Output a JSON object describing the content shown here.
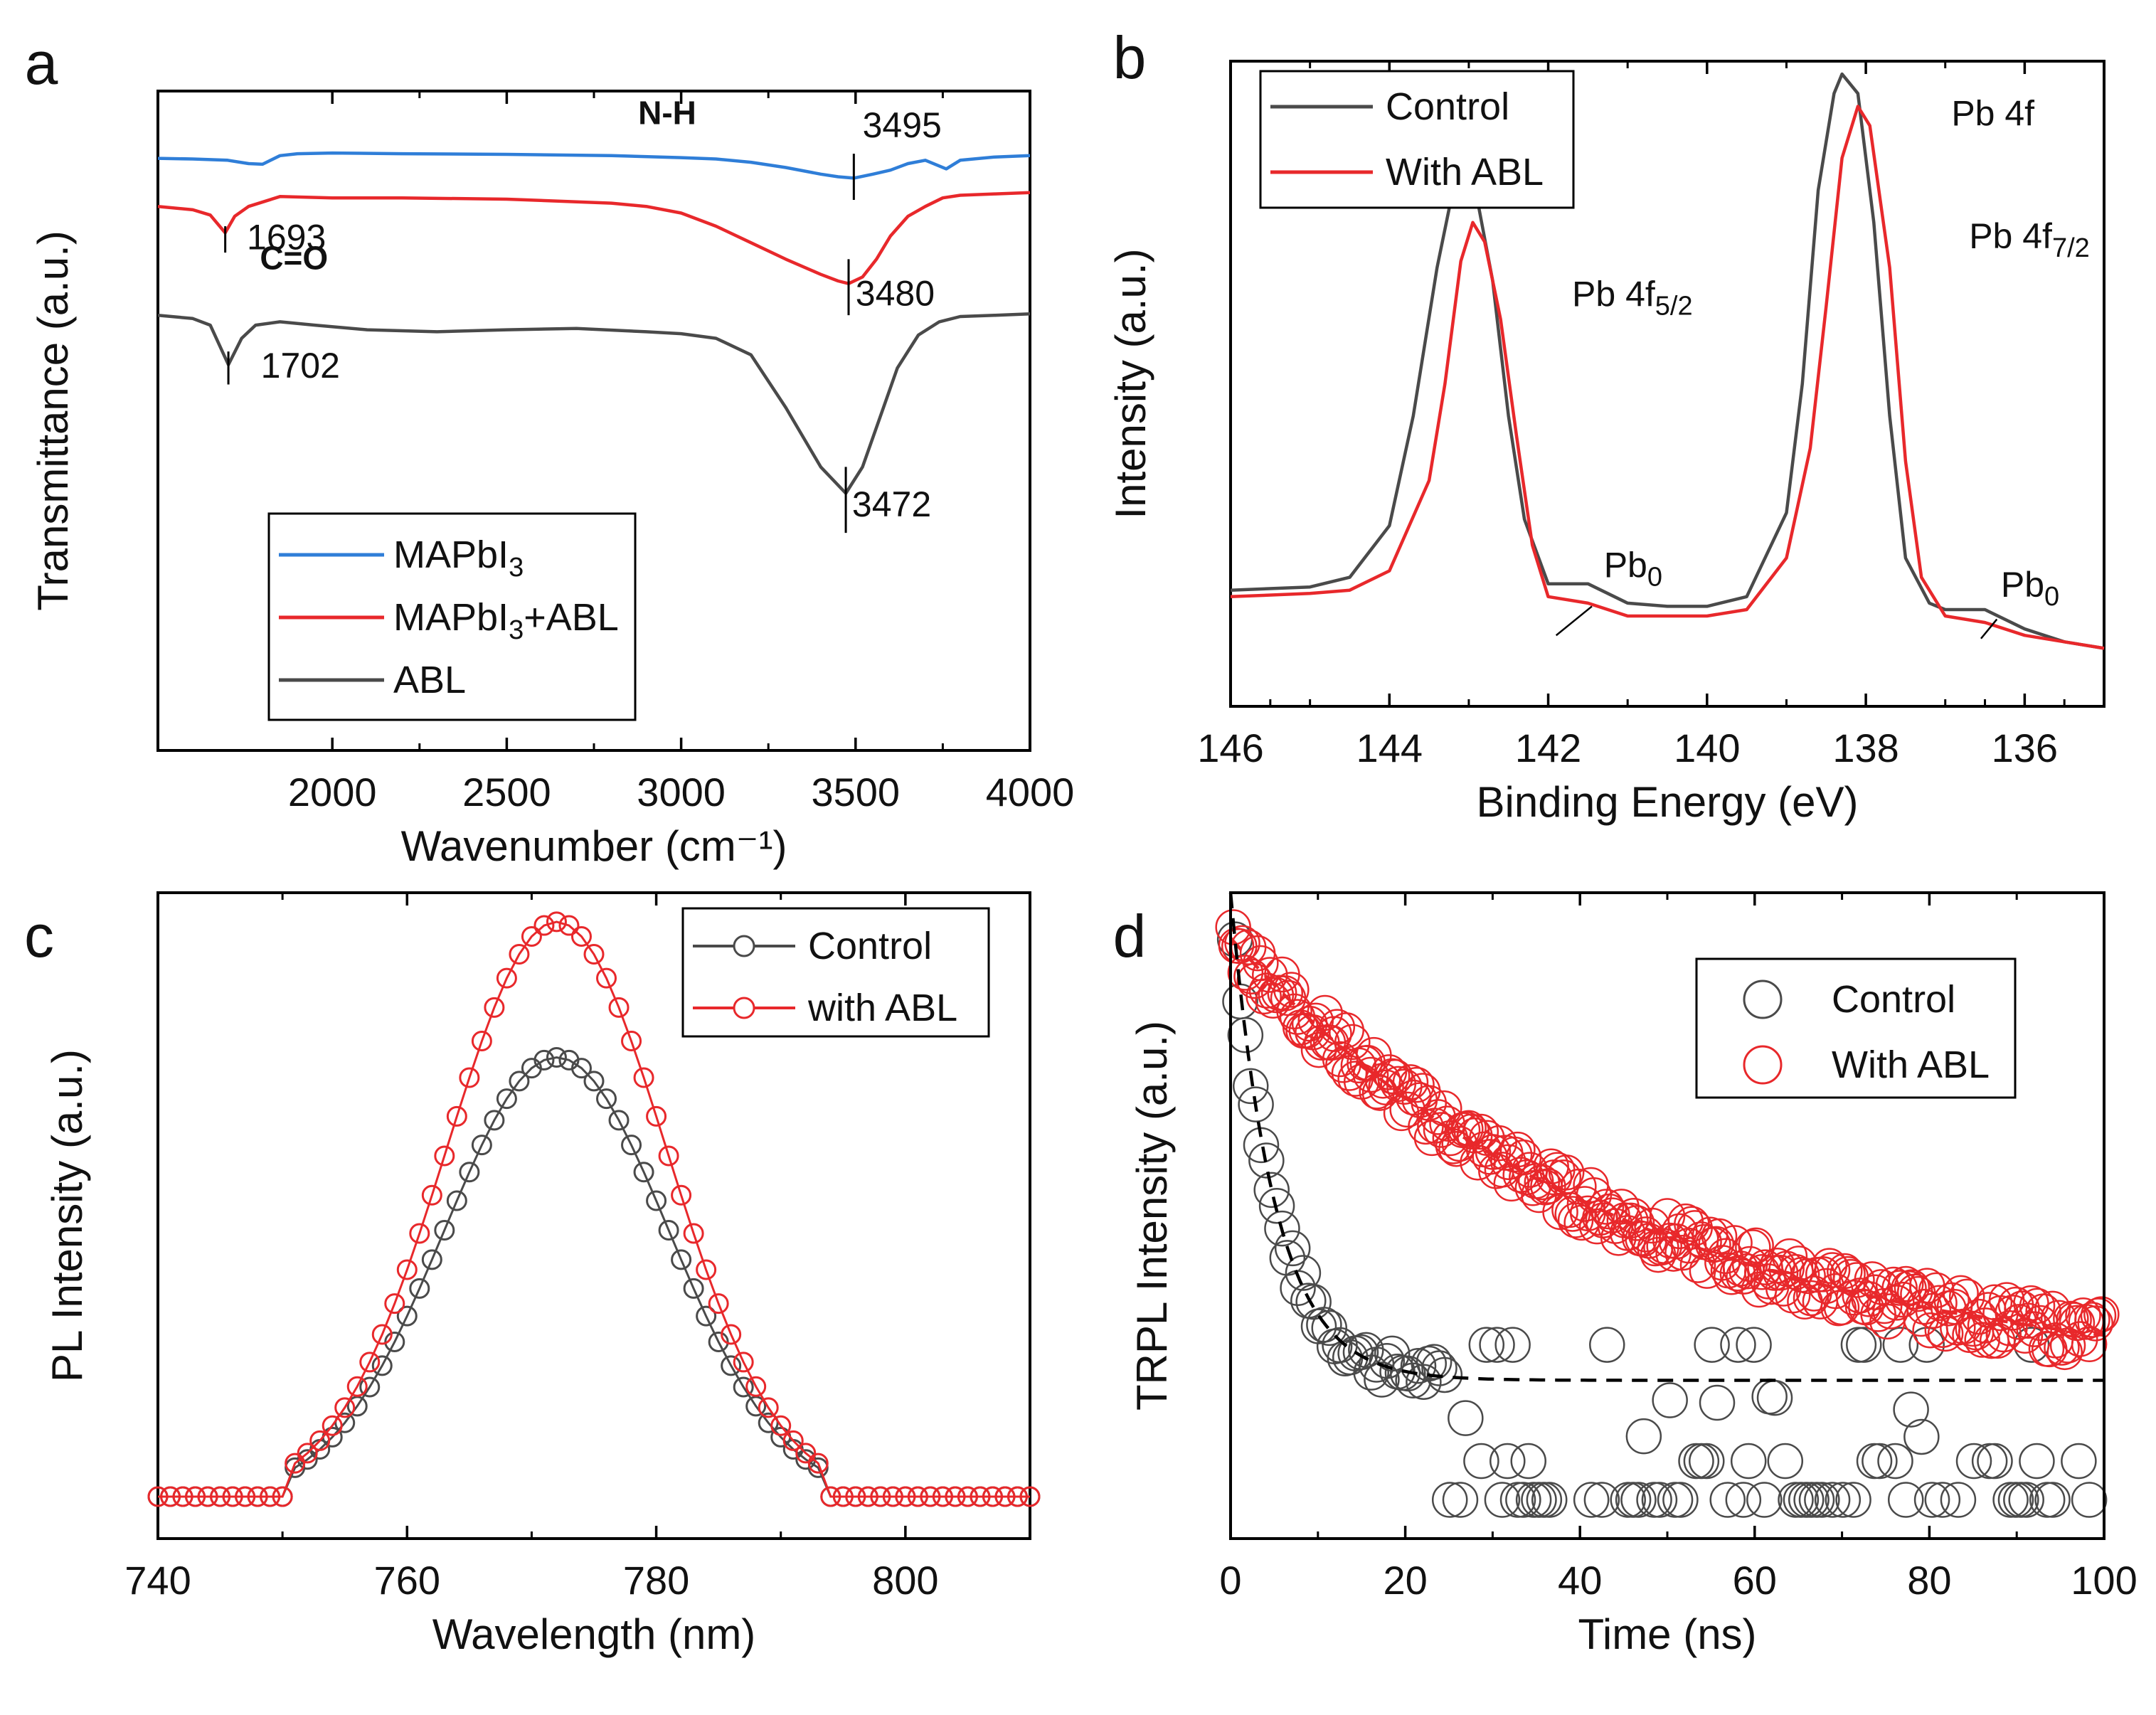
{
  "figure": {
    "panels": [
      "a",
      "b",
      "c",
      "d"
    ]
  },
  "colors": {
    "blue": "#2f7ed8",
    "red": "#e8282b",
    "gray": "#4a4a4a",
    "black": "#000000"
  },
  "chart_data": [
    {
      "id": "a",
      "type": "line",
      "title": "",
      "xlabel": "Wavenumber (cm⁻¹)",
      "ylabel": "Transmittance (a.u.)",
      "xlim": [
        1500,
        4000
      ],
      "ylim": [
        0,
        1
      ],
      "xticks": [
        2000,
        2500,
        3000,
        3500,
        4000
      ],
      "legend": {
        "placement": "bottom-left",
        "entries": [
          "MAPbI₃",
          "MAPbI₃+ABL",
          "ABL"
        ]
      },
      "legend_parts": [
        {
          "base": "MAPbI",
          "sub": "3",
          "rest": ""
        },
        {
          "base": "MAPbI",
          "sub": "3",
          "rest": "+ABL"
        },
        {
          "base": "ABL",
          "sub": "",
          "rest": ""
        }
      ],
      "series": [
        {
          "name": "MAPbI₃",
          "color": "blue",
          "x": [
            1500,
            1600,
            1700,
            1760,
            1800,
            1850,
            1900,
            2000,
            2200,
            2500,
            2800,
            3000,
            3100,
            3200,
            3300,
            3400,
            3450,
            3495,
            3550,
            3600,
            3650,
            3700,
            3760,
            3800,
            3900,
            4000
          ],
          "y": [
            0.898,
            0.897,
            0.895,
            0.89,
            0.889,
            0.902,
            0.905,
            0.906,
            0.905,
            0.904,
            0.902,
            0.899,
            0.897,
            0.892,
            0.884,
            0.874,
            0.87,
            0.868,
            0.874,
            0.88,
            0.89,
            0.895,
            0.882,
            0.895,
            0.9,
            0.902
          ]
        },
        {
          "name": "MAPbI₃+ABL",
          "color": "red",
          "x": [
            1500,
            1600,
            1650,
            1693,
            1720,
            1760,
            1850,
            2000,
            2200,
            2500,
            2800,
            2900,
            3000,
            3100,
            3200,
            3300,
            3400,
            3450,
            3480,
            3520,
            3560,
            3600,
            3650,
            3700,
            3750,
            3800,
            3900,
            4000
          ],
          "y": [
            0.825,
            0.82,
            0.812,
            0.785,
            0.81,
            0.825,
            0.84,
            0.838,
            0.838,
            0.836,
            0.83,
            0.825,
            0.815,
            0.795,
            0.77,
            0.745,
            0.722,
            0.712,
            0.708,
            0.718,
            0.745,
            0.78,
            0.81,
            0.825,
            0.838,
            0.842,
            0.844,
            0.846
          ]
        },
        {
          "name": "ABL",
          "color": "gray",
          "x": [
            1500,
            1600,
            1650,
            1702,
            1740,
            1780,
            1850,
            1950,
            2100,
            2300,
            2500,
            2700,
            2900,
            3000,
            3100,
            3200,
            3300,
            3400,
            3472,
            3520,
            3580,
            3620,
            3680,
            3740,
            3800,
            3900,
            4000
          ],
          "y": [
            0.66,
            0.655,
            0.645,
            0.585,
            0.625,
            0.645,
            0.65,
            0.645,
            0.638,
            0.635,
            0.638,
            0.64,
            0.635,
            0.632,
            0.625,
            0.6,
            0.52,
            0.43,
            0.39,
            0.43,
            0.52,
            0.58,
            0.63,
            0.65,
            0.658,
            0.66,
            0.662
          ]
        }
      ],
      "annotations": [
        {
          "text": "N-H",
          "x": 2960,
          "y": 0.95,
          "bold": true
        },
        {
          "text": "C=O",
          "x": 1890,
          "y": 0.73,
          "bold": true
        },
        {
          "text": "3495",
          "x": 3520,
          "y": 0.93,
          "marker_x": 3495,
          "marker_y0": 0.835,
          "marker_y1": 0.905
        },
        {
          "text": "1693",
          "x": 1755,
          "y": 0.76,
          "marker_x": 1693,
          "marker_y0": 0.755,
          "marker_y1": 0.795
        },
        {
          "text": "3480",
          "x": 3500,
          "y": 0.675,
          "marker_x": 3480,
          "marker_y0": 0.66,
          "marker_y1": 0.745
        },
        {
          "text": "1702",
          "x": 1795,
          "y": 0.565,
          "marker_x": 1702,
          "marker_y0": 0.555,
          "marker_y1": 0.605
        },
        {
          "text": "3472",
          "x": 3490,
          "y": 0.355,
          "marker_x": 3472,
          "marker_y0": 0.33,
          "marker_y1": 0.43
        }
      ]
    },
    {
      "id": "b",
      "type": "line",
      "title": "Pb 4f",
      "xlabel": "Binding Energy (eV)",
      "ylabel": "Intensity (a.u.)",
      "xlim": [
        146,
        135
      ],
      "ylim": [
        0,
        1
      ],
      "xticks": [
        146,
        144,
        142,
        140,
        138,
        136
      ],
      "legend": {
        "placement": "top-left",
        "entries": [
          "Control",
          "With ABL"
        ]
      },
      "series": [
        {
          "name": "Control",
          "color": "gray",
          "x": [
            146,
            145,
            144.5,
            144,
            143.7,
            143.4,
            143.2,
            143.1,
            142.9,
            142.7,
            142.5,
            142.3,
            142,
            141.5,
            141,
            140.5,
            140,
            139.5,
            139,
            138.8,
            138.6,
            138.4,
            138.3,
            138.1,
            137.9,
            137.7,
            137.5,
            137.2,
            137,
            136.5,
            136,
            135.5,
            135
          ],
          "y": [
            0.18,
            0.185,
            0.2,
            0.28,
            0.45,
            0.68,
            0.8,
            0.82,
            0.79,
            0.66,
            0.45,
            0.29,
            0.19,
            0.19,
            0.16,
            0.155,
            0.155,
            0.17,
            0.3,
            0.5,
            0.8,
            0.95,
            0.98,
            0.95,
            0.75,
            0.45,
            0.23,
            0.16,
            0.15,
            0.15,
            0.12,
            0.1,
            0.09
          ]
        },
        {
          "name": "With ABL",
          "color": "red",
          "x": [
            146,
            145,
            144.5,
            144,
            143.5,
            143.3,
            143.1,
            142.95,
            142.8,
            142.6,
            142.4,
            142.2,
            142,
            141.5,
            141,
            140.5,
            140,
            139.5,
            139,
            138.7,
            138.5,
            138.3,
            138.1,
            137.95,
            137.7,
            137.5,
            137.3,
            137,
            136.5,
            136,
            135.5,
            135
          ],
          "y": [
            0.17,
            0.175,
            0.18,
            0.21,
            0.35,
            0.5,
            0.69,
            0.75,
            0.72,
            0.6,
            0.42,
            0.25,
            0.17,
            0.16,
            0.14,
            0.14,
            0.14,
            0.15,
            0.23,
            0.4,
            0.62,
            0.85,
            0.93,
            0.9,
            0.68,
            0.38,
            0.2,
            0.14,
            0.13,
            0.11,
            0.1,
            0.09
          ]
        }
      ],
      "annotations": [
        {
          "text": "Pb 4f",
          "x": 136.4,
          "y": 0.9
        },
        {
          "text": "Pb 4f5/2",
          "x": 141.7,
          "y": 0.62
        },
        {
          "text": "Pb 4f7/2",
          "x": 136.7,
          "y": 0.71
        },
        {
          "text": "Pb0",
          "x": 141.3,
          "y": 0.2
        },
        {
          "text": "Pb0",
          "x": 136.3,
          "y": 0.17
        }
      ]
    },
    {
      "id": "c",
      "type": "scatter",
      "title": "",
      "xlabel": "Wavelength (nm)",
      "ylabel": "PL Intensity (a.u.)",
      "xlim": [
        740,
        810
      ],
      "ylim": [
        0,
        1
      ],
      "xticks": [
        740,
        760,
        780,
        800
      ],
      "legend": {
        "placement": "top-right",
        "entries": [
          "Control",
          "with ABL"
        ]
      },
      "series": [
        {
          "name": "Control",
          "color": "gray",
          "peak": 0.68,
          "center": 772,
          "sigma": 9
        },
        {
          "name": "with ABL",
          "color": "red",
          "peak": 0.89,
          "center": 772,
          "sigma": 8.8
        }
      ]
    },
    {
      "id": "d",
      "type": "scatter",
      "title": "",
      "xlabel": "Time (ns)",
      "ylabel": "TRPL Intensity (a.u.)",
      "xlim": [
        0,
        100
      ],
      "ylim": [
        0,
        1
      ],
      "xticks": [
        0,
        20,
        40,
        60,
        80,
        100
      ],
      "legend": {
        "placement": "top-right",
        "entries": [
          "Control",
          "With ABL"
        ]
      },
      "series": [
        {
          "name": "Control",
          "color": "gray",
          "tau_ns": 5,
          "floor": 0.245,
          "start": 1.0
        },
        {
          "name": "With ABL",
          "color": "red",
          "tau_ns": 45,
          "floor": 0.24,
          "start": 0.93
        }
      ]
    }
  ]
}
